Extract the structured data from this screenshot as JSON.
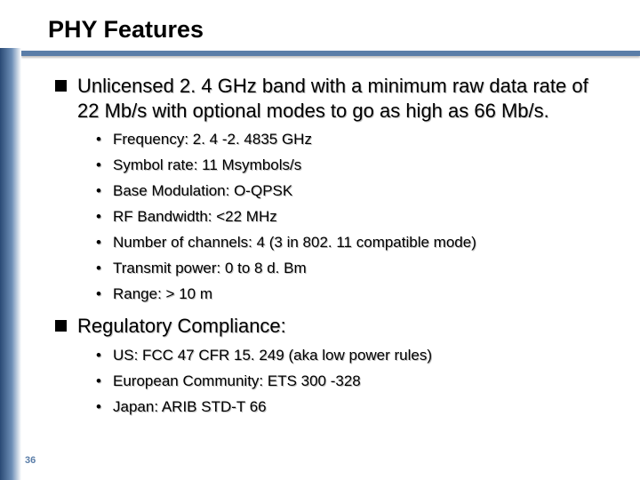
{
  "title": "PHY Features",
  "page_number": "36",
  "colors": {
    "accent": "#5a7da8",
    "sidebar_dark": "#2a4a75",
    "sidebar_mid": "#6d8eb6",
    "text": "#000000",
    "bg": "#ffffff"
  },
  "bullets": [
    {
      "text": "Unlicensed 2. 4 GHz band with a minimum raw data rate of 22 Mb/s with optional modes to go as high as 66 Mb/s.",
      "sub": [
        "Frequency: 2. 4 -2. 4835 GHz",
        "Symbol rate: 11 Msymbols/s",
        "Base Modulation: O-QPSK",
        "RF Bandwidth: <22 MHz",
        "Number of channels: 4 (3 in 802. 11 compatible mode)",
        "Transmit power: 0 to 8 d. Bm",
        "Range: > 10 m"
      ]
    },
    {
      "text": "Regulatory Compliance:",
      "sub": [
        "US: FCC 47 CFR 15. 249 (aka low power rules)",
        "European Community: ETS 300 -328",
        "Japan: ARIB STD-T 66"
      ]
    }
  ]
}
